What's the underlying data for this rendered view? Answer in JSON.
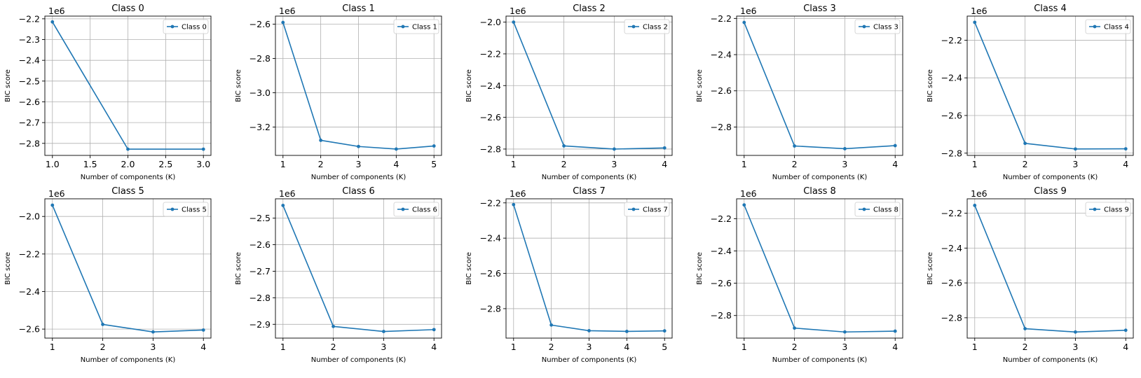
{
  "figure": {
    "axis_color": "#000000",
    "grid_color": "#b0b0b0",
    "line_color": "#1f77b4"
  },
  "chart_data": [
    {
      "type": "line",
      "title": "Class 0",
      "xlabel": "Number of components (K)",
      "ylabel": "BIC score",
      "offset_label": "1e6",
      "grid": true,
      "legend": "top-right",
      "xlim": [
        0.9,
        3.1
      ],
      "ylim": [
        -2.858,
        -2.187
      ],
      "xticks": [
        1.0,
        1.5,
        2.0,
        2.5,
        3.0
      ],
      "xtick_labels": [
        "1.0",
        "1.5",
        "2.0",
        "2.5",
        "3.0"
      ],
      "yticks": [
        -2.8,
        -2.7,
        -2.6,
        -2.5,
        -2.4,
        -2.3,
        -2.2
      ],
      "ytick_labels": [
        "−2.8",
        "−2.7",
        "−2.6",
        "−2.5",
        "−2.4",
        "−2.3",
        "−2.2"
      ],
      "series": [
        {
          "name": "Class 0",
          "x": [
            1,
            2,
            3
          ],
          "y": [
            -2.215,
            -2.828,
            -2.828
          ]
        }
      ]
    },
    {
      "type": "line",
      "title": "Class 1",
      "xlabel": "Number of components (K)",
      "ylabel": "BIC score",
      "offset_label": "1e6",
      "grid": true,
      "legend": "top-right",
      "xlim": [
        0.8,
        5.2
      ],
      "ylim": [
        -3.365,
        -2.553
      ],
      "xticks": [
        1,
        2,
        3,
        4,
        5
      ],
      "xtick_labels": [
        "1",
        "2",
        "3",
        "4",
        "5"
      ],
      "yticks": [
        -3.2,
        -3.0,
        -2.8,
        -2.6
      ],
      "ytick_labels": [
        "−3.2",
        "−3.0",
        "−2.8",
        "−2.6"
      ],
      "series": [
        {
          "name": "Class 1",
          "x": [
            1,
            2,
            3,
            4,
            5
          ],
          "y": [
            -2.59,
            -3.277,
            -3.313,
            -3.328,
            -3.31
          ]
        }
      ]
    },
    {
      "type": "line",
      "title": "Class 2",
      "xlabel": "Number of components (K)",
      "ylabel": "BIC score",
      "offset_label": "1e6",
      "grid": true,
      "legend": "top-right",
      "xlim": [
        0.85,
        4.15
      ],
      "ylim": [
        -2.84,
        -1.962
      ],
      "xticks": [
        1,
        2,
        3,
        4
      ],
      "xtick_labels": [
        "1",
        "2",
        "3",
        "4"
      ],
      "yticks": [
        -2.8,
        -2.6,
        -2.4,
        -2.2,
        -2.0
      ],
      "ytick_labels": [
        "−2.8",
        "−2.6",
        "−2.4",
        "−2.2",
        "−2.0"
      ],
      "series": [
        {
          "name": "Class 2",
          "x": [
            1,
            2,
            3,
            4
          ],
          "y": [
            -2.0,
            -2.78,
            -2.8,
            -2.793
          ]
        }
      ]
    },
    {
      "type": "line",
      "title": "Class 3",
      "xlabel": "Number of components (K)",
      "ylabel": "BIC score",
      "offset_label": "1e6",
      "grid": true,
      "legend": "top-right",
      "xlim": [
        0.85,
        4.15
      ],
      "ylim": [
        -2.957,
        -2.187
      ],
      "xticks": [
        1,
        2,
        3,
        4
      ],
      "xtick_labels": [
        "1",
        "2",
        "3",
        "4"
      ],
      "yticks": [
        -2.8,
        -2.6,
        -2.4,
        -2.2
      ],
      "ytick_labels": [
        "−2.8",
        "−2.6",
        "−2.4",
        "−2.2"
      ],
      "series": [
        {
          "name": "Class 3",
          "x": [
            1,
            2,
            3,
            4
          ],
          "y": [
            -2.222,
            -2.905,
            -2.92,
            -2.903
          ]
        }
      ]
    },
    {
      "type": "line",
      "title": "Class 4",
      "xlabel": "Number of components (K)",
      "ylabel": "BIC score",
      "offset_label": "1e6",
      "grid": true,
      "legend": "top-right",
      "xlim": [
        0.85,
        4.15
      ],
      "ylim": [
        -2.812,
        -2.072
      ],
      "xticks": [
        1,
        2,
        3,
        4
      ],
      "xtick_labels": [
        "1",
        "2",
        "3",
        "4"
      ],
      "yticks": [
        -2.8,
        -2.6,
        -2.4,
        -2.2
      ],
      "ytick_labels": [
        "−2.8",
        "−2.6",
        "−2.4",
        "−2.2"
      ],
      "series": [
        {
          "name": "Class 4",
          "x": [
            1,
            2,
            3,
            4
          ],
          "y": [
            -2.105,
            -2.748,
            -2.778,
            -2.777
          ]
        }
      ]
    },
    {
      "type": "line",
      "title": "Class 5",
      "xlabel": "Number of components (K)",
      "ylabel": "BIC score",
      "offset_label": "1e6",
      "grid": true,
      "legend": "top-right",
      "xlim": [
        0.85,
        4.15
      ],
      "ylim": [
        -2.648,
        -1.906
      ],
      "xticks": [
        1,
        2,
        3,
        4
      ],
      "xtick_labels": [
        "1",
        "2",
        "3",
        "4"
      ],
      "yticks": [
        -2.6,
        -2.4,
        -2.2,
        -2.0
      ],
      "ytick_labels": [
        "−2.6",
        "−2.4",
        "−2.2",
        "−2.0"
      ],
      "series": [
        {
          "name": "Class 5",
          "x": [
            1,
            2,
            3,
            4
          ],
          "y": [
            -1.94,
            -2.575,
            -2.615,
            -2.605
          ]
        }
      ]
    },
    {
      "type": "line",
      "title": "Class 6",
      "xlabel": "Number of components (K)",
      "ylabel": "BIC score",
      "offset_label": "1e6",
      "grid": true,
      "legend": "top-right",
      "xlim": [
        0.85,
        4.15
      ],
      "ylim": [
        -2.952,
        -2.427
      ],
      "xticks": [
        1,
        2,
        3,
        4
      ],
      "xtick_labels": [
        "1",
        "2",
        "3",
        "4"
      ],
      "yticks": [
        -2.9,
        -2.8,
        -2.7,
        -2.6,
        -2.5
      ],
      "ytick_labels": [
        "−2.9",
        "−2.8",
        "−2.7",
        "−2.6",
        "−2.5"
      ],
      "series": [
        {
          "name": "Class 6",
          "x": [
            1,
            2,
            3,
            4
          ],
          "y": [
            -2.452,
            -2.908,
            -2.927,
            -2.92
          ]
        }
      ]
    },
    {
      "type": "line",
      "title": "Class 7",
      "xlabel": "Number of components (K)",
      "ylabel": "BIC score",
      "offset_label": "1e6",
      "grid": true,
      "legend": "top-right",
      "xlim": [
        0.8,
        5.2
      ],
      "ylim": [
        -2.967,
        -2.177
      ],
      "xticks": [
        1,
        2,
        3,
        4,
        5
      ],
      "xtick_labels": [
        "1",
        "2",
        "3",
        "4",
        "5"
      ],
      "yticks": [
        -2.8,
        -2.6,
        -2.4,
        -2.2
      ],
      "ytick_labels": [
        "−2.8",
        "−2.6",
        "−2.4",
        "−2.2"
      ],
      "series": [
        {
          "name": "Class 7",
          "x": [
            1,
            2,
            3,
            4,
            5
          ],
          "y": [
            -2.21,
            -2.893,
            -2.925,
            -2.929,
            -2.926
          ]
        }
      ]
    },
    {
      "type": "line",
      "title": "Class 8",
      "xlabel": "Number of components (K)",
      "ylabel": "BIC score",
      "offset_label": "1e6",
      "grid": true,
      "legend": "top-right",
      "xlim": [
        0.85,
        4.15
      ],
      "ylim": [
        -2.94,
        -2.077
      ],
      "xticks": [
        1,
        2,
        3,
        4
      ],
      "xtick_labels": [
        "1",
        "2",
        "3",
        "4"
      ],
      "yticks": [
        -2.8,
        -2.6,
        -2.4,
        -2.2
      ],
      "ytick_labels": [
        "−2.8",
        "−2.6",
        "−2.4",
        "−2.2"
      ],
      "series": [
        {
          "name": "Class 8",
          "x": [
            1,
            2,
            3,
            4
          ],
          "y": [
            -2.115,
            -2.878,
            -2.902,
            -2.897
          ]
        }
      ]
    },
    {
      "type": "line",
      "title": "Class 9",
      "xlabel": "Number of components (K)",
      "ylabel": "BIC score",
      "offset_label": "1e6",
      "grid": true,
      "legend": "top-right",
      "xlim": [
        0.85,
        4.15
      ],
      "ylim": [
        -2.917,
        -2.117
      ],
      "xticks": [
        1,
        2,
        3,
        4
      ],
      "xtick_labels": [
        "1",
        "2",
        "3",
        "4"
      ],
      "yticks": [
        -2.8,
        -2.6,
        -2.4,
        -2.2
      ],
      "ytick_labels": [
        "−2.8",
        "−2.6",
        "−2.4",
        "−2.2"
      ],
      "series": [
        {
          "name": "Class 9",
          "x": [
            1,
            2,
            3,
            4
          ],
          "y": [
            -2.155,
            -2.863,
            -2.882,
            -2.872
          ]
        }
      ]
    }
  ]
}
